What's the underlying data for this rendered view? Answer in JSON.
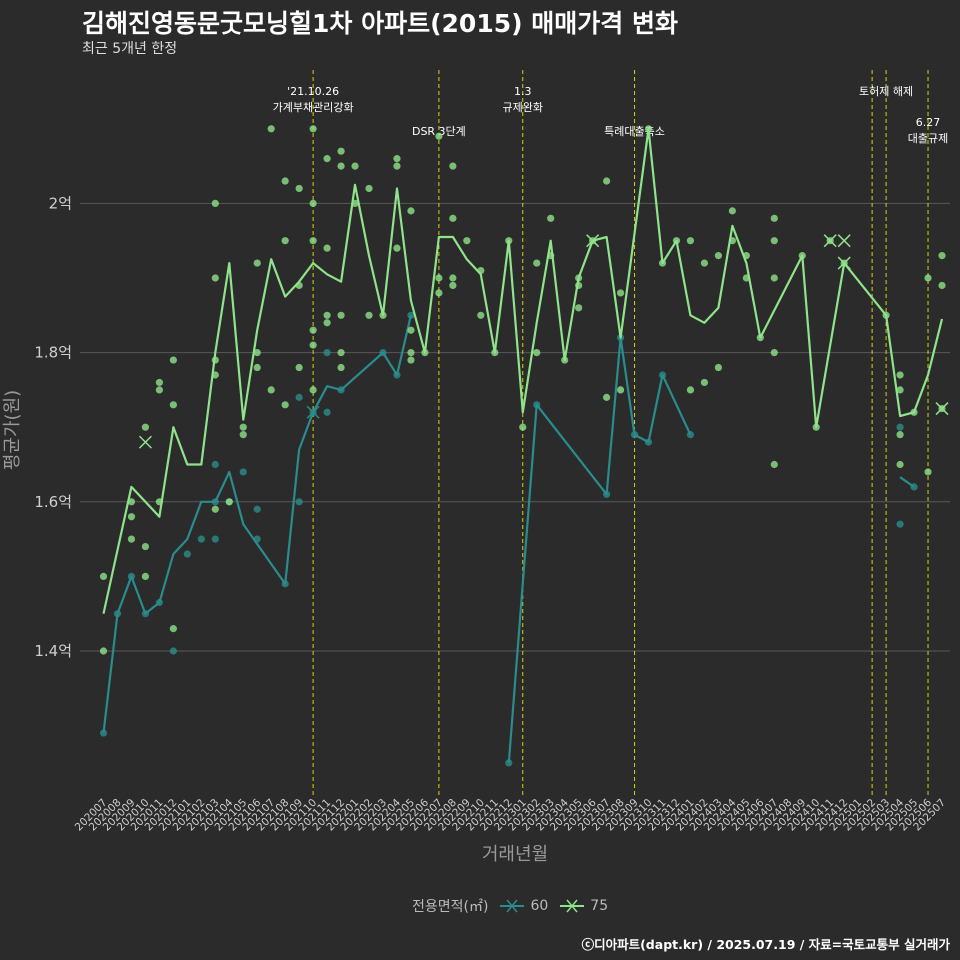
{
  "title": "김해진영동문굿모닝힐1차 아파트(2015) 매매가격 변화",
  "subtitle": "최근 5개년 한정",
  "caption": "ⓒ디아파트(dapt.kr) / 2025.07.19 / 자료=국토교통부 실거래가",
  "colors": {
    "background": "#2b2b2b",
    "grid": "#595959",
    "series60": "#2a8c8c",
    "series75": "#8fe38a",
    "vline": "#d4d40f"
  },
  "legend": {
    "title": "전용면적(㎡)",
    "items": [
      "60",
      "75"
    ]
  },
  "chart_data": {
    "type": "line",
    "xlabel": "거래년월",
    "ylabel": "평균가(원)",
    "ylim": [
      1.2,
      2.15
    ],
    "yticks": [
      {
        "value": 1.4,
        "label": "1.4억"
      },
      {
        "value": 1.6,
        "label": "1.6억"
      },
      {
        "value": 1.8,
        "label": "1.8억"
      },
      {
        "value": 2.0,
        "label": "2억"
      }
    ],
    "categories": [
      "202007",
      "202008",
      "202009",
      "202010",
      "202011",
      "202012",
      "202101",
      "202102",
      "202103",
      "202104",
      "202105",
      "202106",
      "202107",
      "202108",
      "202109",
      "202110",
      "202111",
      "202112",
      "202201",
      "202202",
      "202203",
      "202204",
      "202205",
      "202206",
      "202207",
      "202208",
      "202209",
      "202210",
      "202211",
      "202212",
      "202301",
      "202302",
      "202303",
      "202304",
      "202305",
      "202306",
      "202307",
      "202308",
      "202309",
      "202310",
      "202311",
      "202312",
      "202401",
      "202402",
      "202403",
      "202404",
      "202405",
      "202406",
      "202407",
      "202408",
      "202409",
      "202410",
      "202411",
      "202412",
      "202501",
      "202502",
      "202503",
      "202504",
      "202505",
      "202506",
      "202507"
    ],
    "grid": true,
    "legend_position": "bottom",
    "annotations": [
      {
        "x": "202110",
        "lines": [
          "'21.10.26",
          "가계부채관리강화"
        ],
        "level": 1
      },
      {
        "x": "202207",
        "lines": [
          "DSR 3단계"
        ],
        "level": 2
      },
      {
        "x": "202301",
        "lines": [
          "1.3",
          "규제완화"
        ],
        "level": 1
      },
      {
        "x": "202309",
        "lines": [
          "특례대출축소"
        ],
        "level": 2
      },
      {
        "x": "202502",
        "lines": [],
        "level": 0
      },
      {
        "x": "202503",
        "lines": [
          "토허제 해제"
        ],
        "level": 1
      },
      {
        "x": "202506",
        "lines": [
          "6.27",
          "대출규제"
        ],
        "level": 3
      }
    ],
    "series": [
      {
        "name": "60",
        "color": "#2a8c8c",
        "line": [
          [
            "202007",
            1.29
          ],
          [
            "202008",
            1.45
          ],
          [
            "202009",
            1.5
          ],
          [
            "202010",
            1.45
          ],
          [
            "202011",
            1.465
          ],
          [
            "202012",
            1.53
          ],
          [
            "202101",
            1.55
          ],
          [
            "202102",
            1.6
          ],
          [
            "202103",
            1.6
          ],
          [
            "202104",
            1.64
          ],
          [
            "202105",
            1.57
          ],
          [
            "202108",
            1.49
          ],
          [
            "202109",
            1.67
          ],
          [
            "202110",
            1.72
          ],
          [
            "202111",
            1.755
          ],
          [
            "202112",
            1.75
          ],
          [
            "202203",
            1.8
          ],
          [
            "202204",
            1.77
          ],
          [
            "202205",
            1.85
          ],
          null,
          [
            "202212",
            1.25
          ],
          [
            "202302",
            1.73
          ],
          [
            "202307",
            1.61
          ],
          [
            "202308",
            1.82
          ],
          [
            "202309",
            1.69
          ],
          [
            "202310",
            1.68
          ],
          [
            "202311",
            1.77
          ],
          [
            "202401",
            1.69
          ],
          null,
          [
            "202504",
            1.633
          ],
          [
            "202505",
            1.62
          ]
        ],
        "points": [
          [
            "202007",
            1.29
          ],
          [
            "202008",
            1.45
          ],
          [
            "202009",
            1.5
          ],
          [
            "202010",
            1.45
          ],
          [
            "202011",
            1.465
          ],
          [
            "202012",
            1.4
          ],
          [
            "202101",
            1.53
          ],
          [
            "202102",
            1.55
          ],
          [
            "202103",
            1.6
          ],
          [
            "202103",
            1.65
          ],
          [
            "202103",
            1.55
          ],
          [
            "202104",
            1.6
          ],
          [
            "202105",
            1.64
          ],
          [
            "202106",
            1.55
          ],
          [
            "202106",
            1.59
          ],
          [
            "202108",
            1.49
          ],
          [
            "202109",
            1.6
          ],
          [
            "202109",
            1.74
          ],
          [
            "202110",
            1.72
          ],
          [
            "202111",
            1.72
          ],
          [
            "202111",
            1.8
          ],
          [
            "202112",
            1.75
          ],
          [
            "202203",
            1.8
          ],
          [
            "202204",
            1.77
          ],
          [
            "202205",
            1.85
          ],
          [
            "202212",
            1.25
          ],
          [
            "202302",
            1.73
          ],
          [
            "202307",
            1.61
          ],
          [
            "202308",
            1.82
          ],
          [
            "202309",
            1.69
          ],
          [
            "202310",
            1.68
          ],
          [
            "202311",
            1.77
          ],
          [
            "202401",
            1.69
          ],
          [
            "202504",
            1.7
          ],
          [
            "202504",
            1.57
          ],
          [
            "202505",
            1.62
          ]
        ],
        "crosses": [
          [
            "202110",
            1.72
          ]
        ]
      },
      {
        "name": "75",
        "color": "#8fe38a",
        "line": [
          [
            "202007",
            1.45
          ],
          [
            "202009",
            1.62
          ],
          [
            "202011",
            1.58
          ],
          [
            "202012",
            1.7
          ],
          [
            "202101",
            1.65
          ],
          [
            "202102",
            1.65
          ],
          [
            "202103",
            1.8
          ],
          [
            "202104",
            1.92
          ],
          [
            "202105",
            1.71
          ],
          [
            "202106",
            1.83
          ],
          [
            "202107",
            1.925
          ],
          [
            "202108",
            1.875
          ],
          [
            "202109",
            1.895
          ],
          [
            "202110",
            1.92
          ],
          [
            "202111",
            1.905
          ],
          [
            "202112",
            1.895
          ],
          [
            "202201",
            2.025
          ],
          [
            "202202",
            1.93
          ],
          [
            "202203",
            1.85
          ],
          [
            "202204",
            2.02
          ],
          [
            "202205",
            1.87
          ],
          [
            "202206",
            1.8
          ],
          [
            "202207",
            1.955
          ],
          [
            "202208",
            1.955
          ],
          [
            "202209",
            1.925
          ],
          [
            "202210",
            1.905
          ],
          [
            "202211",
            1.8
          ],
          [
            "202212",
            1.95
          ],
          [
            "202301",
            1.72
          ],
          [
            "202302",
            1.84
          ],
          [
            "202303",
            1.95
          ],
          [
            "202304",
            1.79
          ],
          [
            "202305",
            1.9
          ],
          [
            "202306",
            1.95
          ],
          [
            "202307",
            1.955
          ],
          [
            "202308",
            1.82
          ],
          [
            "202310",
            2.1
          ],
          [
            "202311",
            1.92
          ],
          [
            "202312",
            1.95
          ],
          [
            "202401",
            1.85
          ],
          [
            "202402",
            1.84
          ],
          [
            "202403",
            1.86
          ],
          [
            "202404",
            1.97
          ],
          [
            "202405",
            1.92
          ],
          [
            "202406",
            1.82
          ],
          [
            "202409",
            1.93
          ],
          [
            "202410",
            1.7
          ],
          [
            "202412",
            1.92
          ],
          [
            "202503",
            1.85
          ],
          [
            "202504",
            1.715
          ],
          [
            "202505",
            1.72
          ],
          [
            "202506",
            1.77
          ],
          [
            "202507",
            1.845
          ]
        ],
        "points": [
          [
            "202007",
            1.5
          ],
          [
            "202007",
            1.4
          ],
          [
            "202009",
            1.6
          ],
          [
            "202009",
            1.58
          ],
          [
            "202009",
            1.55
          ],
          [
            "202010",
            1.5
          ],
          [
            "202010",
            1.54
          ],
          [
            "202010",
            1.7
          ],
          [
            "202011",
            1.76
          ],
          [
            "202011",
            1.75
          ],
          [
            "202011",
            1.6
          ],
          [
            "202012",
            1.43
          ],
          [
            "202012",
            1.73
          ],
          [
            "202012",
            1.79
          ],
          [
            "202103",
            2.0
          ],
          [
            "202103",
            1.9
          ],
          [
            "202103",
            1.79
          ],
          [
            "202103",
            1.59
          ],
          [
            "202103",
            1.77
          ],
          [
            "202104",
            1.6
          ],
          [
            "202105",
            1.69
          ],
          [
            "202105",
            1.7
          ],
          [
            "202106",
            1.92
          ],
          [
            "202106",
            1.78
          ],
          [
            "202106",
            1.8
          ],
          [
            "202107",
            2.1
          ],
          [
            "202107",
            1.75
          ],
          [
            "202108",
            2.03
          ],
          [
            "202108",
            1.95
          ],
          [
            "202108",
            1.73
          ],
          [
            "202109",
            2.02
          ],
          [
            "202109",
            1.78
          ],
          [
            "202109",
            1.89
          ],
          [
            "202110",
            2.1
          ],
          [
            "202110",
            2.0
          ],
          [
            "202110",
            1.95
          ],
          [
            "202110",
            1.83
          ],
          [
            "202110",
            1.81
          ],
          [
            "202110",
            1.75
          ],
          [
            "202111",
            1.94
          ],
          [
            "202111",
            1.85
          ],
          [
            "202111",
            1.84
          ],
          [
            "202111",
            2.06
          ],
          [
            "202112",
            2.07
          ],
          [
            "202112",
            2.05
          ],
          [
            "202112",
            1.85
          ],
          [
            "202112",
            1.8
          ],
          [
            "202112",
            1.78
          ],
          [
            "202201",
            2.05
          ],
          [
            "202201",
            2.0
          ],
          [
            "202202",
            2.02
          ],
          [
            "202202",
            1.85
          ],
          [
            "202203",
            1.85
          ],
          [
            "202204",
            2.06
          ],
          [
            "202204",
            2.05
          ],
          [
            "202204",
            1.94
          ],
          [
            "202205",
            1.99
          ],
          [
            "202205",
            1.83
          ],
          [
            "202205",
            1.8
          ],
          [
            "202205",
            1.79
          ],
          [
            "202206",
            1.8
          ],
          [
            "202207",
            2.09
          ],
          [
            "202207",
            1.9
          ],
          [
            "202207",
            1.88
          ],
          [
            "202208",
            2.05
          ],
          [
            "202208",
            1.98
          ],
          [
            "202208",
            1.89
          ],
          [
            "202208",
            1.9
          ],
          [
            "202209",
            1.95
          ],
          [
            "202210",
            1.91
          ],
          [
            "202210",
            1.85
          ],
          [
            "202211",
            1.8
          ],
          [
            "202212",
            1.95
          ],
          [
            "202301",
            1.7
          ],
          [
            "202302",
            1.8
          ],
          [
            "202302",
            1.92
          ],
          [
            "202303",
            1.98
          ],
          [
            "202303",
            1.93
          ],
          [
            "202304",
            1.79
          ],
          [
            "202305",
            1.9
          ],
          [
            "202305",
            1.89
          ],
          [
            "202305",
            1.86
          ],
          [
            "202306",
            1.95
          ],
          [
            "202307",
            2.03
          ],
          [
            "202307",
            1.74
          ],
          [
            "202308",
            1.88
          ],
          [
            "202308",
            1.75
          ],
          [
            "202310",
            2.1
          ],
          [
            "202311",
            1.92
          ],
          [
            "202312",
            1.95
          ],
          [
            "202401",
            1.95
          ],
          [
            "202401",
            1.75
          ],
          [
            "202402",
            1.92
          ],
          [
            "202402",
            1.76
          ],
          [
            "202403",
            1.93
          ],
          [
            "202403",
            1.78
          ],
          [
            "202404",
            1.99
          ],
          [
            "202404",
            1.95
          ],
          [
            "202405",
            1.93
          ],
          [
            "202405",
            1.9
          ],
          [
            "202406",
            1.82
          ],
          [
            "202407",
            1.98
          ],
          [
            "202407",
            1.95
          ],
          [
            "202407",
            1.9
          ],
          [
            "202407",
            1.8
          ],
          [
            "202407",
            1.65
          ],
          [
            "202409",
            1.93
          ],
          [
            "202410",
            1.7
          ],
          [
            "202411",
            1.95
          ],
          [
            "202412",
            1.92
          ],
          [
            "202503",
            1.85
          ],
          [
            "202504",
            1.77
          ],
          [
            "202504",
            1.75
          ],
          [
            "202504",
            1.69
          ],
          [
            "202504",
            1.65
          ],
          [
            "202505",
            1.72
          ],
          [
            "202506",
            1.9
          ],
          [
            "202506",
            1.64
          ],
          [
            "202507",
            1.93
          ],
          [
            "202507",
            1.89
          ],
          [
            "202507",
            1.725
          ]
        ],
        "crosses": [
          [
            "202010",
            1.68
          ],
          [
            "202306",
            1.95
          ],
          [
            "202411",
            1.95
          ],
          [
            "202412",
            1.95
          ],
          [
            "202412",
            1.92
          ],
          [
            "202507",
            1.725
          ]
        ]
      }
    ]
  }
}
